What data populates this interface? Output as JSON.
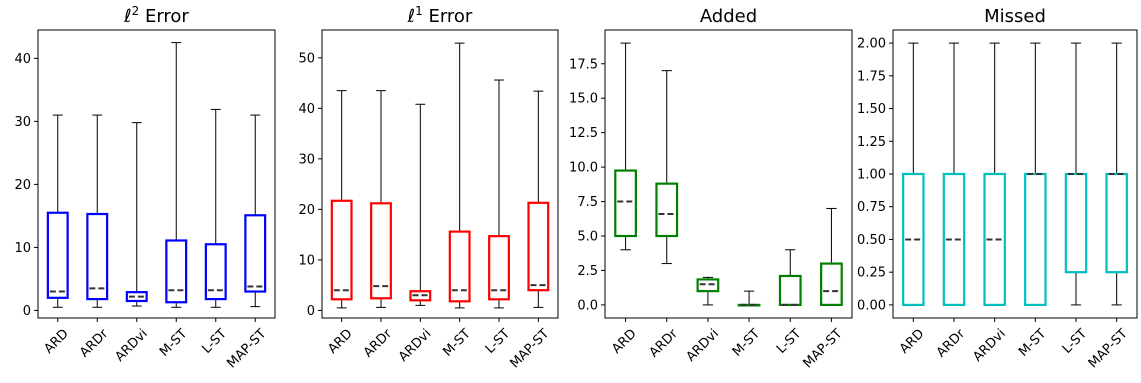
{
  "chart_data": [
    {
      "type": "box",
      "title": "ℓ² Error",
      "title_main": "ℓ",
      "title_sup": "2",
      "title_rest": " Error",
      "color": "#0000ff",
      "categories": [
        "ARD",
        "ARDr",
        "ARDvi",
        "M-ST",
        "L-ST",
        "MAP-ST"
      ],
      "ylim": [
        -1.2,
        44.5
      ],
      "yticks": [
        0,
        10,
        20,
        30,
        40
      ],
      "tick_labels": [
        "0",
        "10",
        "20",
        "30",
        "40"
      ],
      "boxes": [
        {
          "min": 0.5,
          "q1": 2.0,
          "median": 3.0,
          "q3": 15.5,
          "max": 31.0
        },
        {
          "min": 0.5,
          "q1": 1.8,
          "median": 3.5,
          "q3": 15.3,
          "max": 31.0
        },
        {
          "min": 0.7,
          "q1": 1.5,
          "median": 2.2,
          "q3": 2.9,
          "max": 29.8
        },
        {
          "min": 0.5,
          "q1": 1.3,
          "median": 3.2,
          "q3": 11.1,
          "max": 42.5
        },
        {
          "min": 0.5,
          "q1": 1.8,
          "median": 3.2,
          "q3": 10.5,
          "max": 31.9
        },
        {
          "min": 0.6,
          "q1": 3.0,
          "median": 3.8,
          "q3": 15.1,
          "max": 31.0
        }
      ]
    },
    {
      "type": "box",
      "title": "ℓ¹ Error",
      "title_main": "ℓ",
      "title_sup": "1",
      "title_rest": " Error",
      "color": "#ff0000",
      "categories": [
        "ARD",
        "ARDr",
        "ARDvi",
        "M-ST",
        "L-ST",
        "MAP-ST"
      ],
      "ylim": [
        -1.5,
        55.5
      ],
      "yticks": [
        0,
        10,
        20,
        30,
        40,
        50
      ],
      "tick_labels": [
        "0",
        "10",
        "20",
        "30",
        "40",
        "50"
      ],
      "boxes": [
        {
          "min": 0.5,
          "q1": 2.2,
          "median": 4.0,
          "q3": 21.7,
          "max": 43.5
        },
        {
          "min": 0.6,
          "q1": 2.4,
          "median": 4.8,
          "q3": 21.2,
          "max": 43.5
        },
        {
          "min": 1.0,
          "q1": 2.0,
          "median": 3.0,
          "q3": 3.8,
          "max": 40.8
        },
        {
          "min": 0.5,
          "q1": 1.8,
          "median": 4.0,
          "q3": 15.6,
          "max": 52.9
        },
        {
          "min": 0.5,
          "q1": 2.2,
          "median": 4.0,
          "q3": 14.7,
          "max": 45.6
        },
        {
          "min": 0.6,
          "q1": 4.0,
          "median": 5.0,
          "q3": 21.3,
          "max": 43.4
        }
      ]
    },
    {
      "type": "box",
      "title": "Added",
      "color": "#008000",
      "categories": [
        "ARD",
        "ARDr",
        "ARDvi",
        "M-ST",
        "L-ST",
        "MAP-ST"
      ],
      "ylim": [
        -0.95,
        19.95
      ],
      "yticks": [
        0,
        2.5,
        5,
        7.5,
        10,
        12.5,
        15,
        17.5
      ],
      "tick_labels": [
        "0.0",
        "2.5",
        "5.0",
        "7.5",
        "10.0",
        "12.5",
        "15.0",
        "17.5"
      ],
      "boxes": [
        {
          "min": 4.0,
          "q1": 5.0,
          "median": 7.5,
          "q3": 9.75,
          "max": 19.0
        },
        {
          "min": 3.0,
          "q1": 5.0,
          "median": 6.6,
          "q3": 8.8,
          "max": 17.0
        },
        {
          "min": 0.0,
          "q1": 1.0,
          "median": 1.5,
          "q3": 1.85,
          "max": 2.0
        },
        {
          "min": 0.0,
          "q1": 0.0,
          "median": 0.0,
          "q3": 0.0,
          "max": 1.0
        },
        {
          "min": 0.0,
          "q1": 0.0,
          "median": 0.0,
          "q3": 2.1,
          "max": 4.0
        },
        {
          "min": 0.0,
          "q1": 0.0,
          "median": 1.0,
          "q3": 3.0,
          "max": 7.0
        }
      ]
    },
    {
      "type": "box",
      "title": "Missed",
      "color": "#00bfbf",
      "categories": [
        "ARD",
        "ARDr",
        "ARDvi",
        "M-ST",
        "L-ST",
        "MAP-ST"
      ],
      "ylim": [
        -0.1,
        2.1
      ],
      "yticks": [
        0,
        0.25,
        0.5,
        0.75,
        1,
        1.25,
        1.5,
        1.75,
        2
      ],
      "tick_labels": [
        "0.00",
        "0.25",
        "0.50",
        "0.75",
        "1.00",
        "1.25",
        "1.50",
        "1.75",
        "2.00"
      ],
      "boxes": [
        {
          "min": 0.0,
          "q1": 0.0,
          "median": 0.5,
          "q3": 1.0,
          "max": 2.0
        },
        {
          "min": 0.0,
          "q1": 0.0,
          "median": 0.5,
          "q3": 1.0,
          "max": 2.0
        },
        {
          "min": 0.0,
          "q1": 0.0,
          "median": 0.5,
          "q3": 1.0,
          "max": 2.0
        },
        {
          "min": 0.0,
          "q1": 0.0,
          "median": 1.0,
          "q3": 1.0,
          "max": 2.0
        },
        {
          "min": 0.0,
          "q1": 0.25,
          "median": 1.0,
          "q3": 1.0,
          "max": 2.0
        },
        {
          "min": 0.0,
          "q1": 0.25,
          "median": 1.0,
          "q3": 1.0,
          "max": 2.0
        }
      ]
    }
  ]
}
